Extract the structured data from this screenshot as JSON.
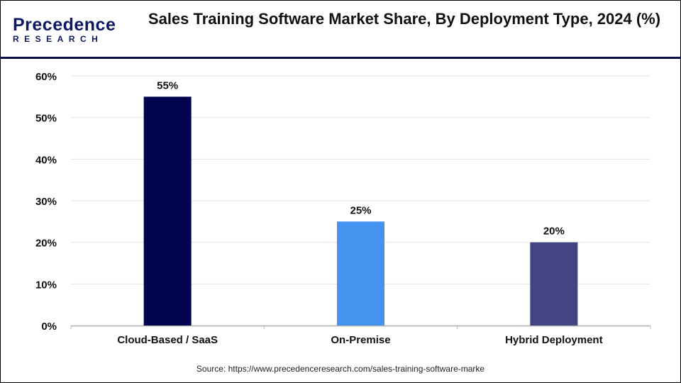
{
  "logo": {
    "line1": "Precedence",
    "line2": "RESEARCH"
  },
  "source": "Source: https://www.precedenceresearch.com/sales-training-software-marke",
  "chart_data": {
    "type": "bar",
    "title": "Sales Training Software Market Share, By Deployment Type, 2024 (%)",
    "categories": [
      "Cloud-Based / SaaS",
      "On-Premise",
      "Hybrid Deployment"
    ],
    "values": [
      55,
      25,
      20
    ],
    "data_labels": [
      "55%",
      "25%",
      "20%"
    ],
    "colors": [
      "#02034f",
      "#4593ee",
      "#434582"
    ],
    "ylim": [
      0,
      60
    ],
    "yticks": [
      0,
      10,
      20,
      30,
      40,
      50,
      60
    ],
    "ytick_labels": [
      "0%",
      "10%",
      "20%",
      "30%",
      "40%",
      "50%",
      "60%"
    ],
    "grid": true,
    "xlabel": "",
    "ylabel": ""
  }
}
